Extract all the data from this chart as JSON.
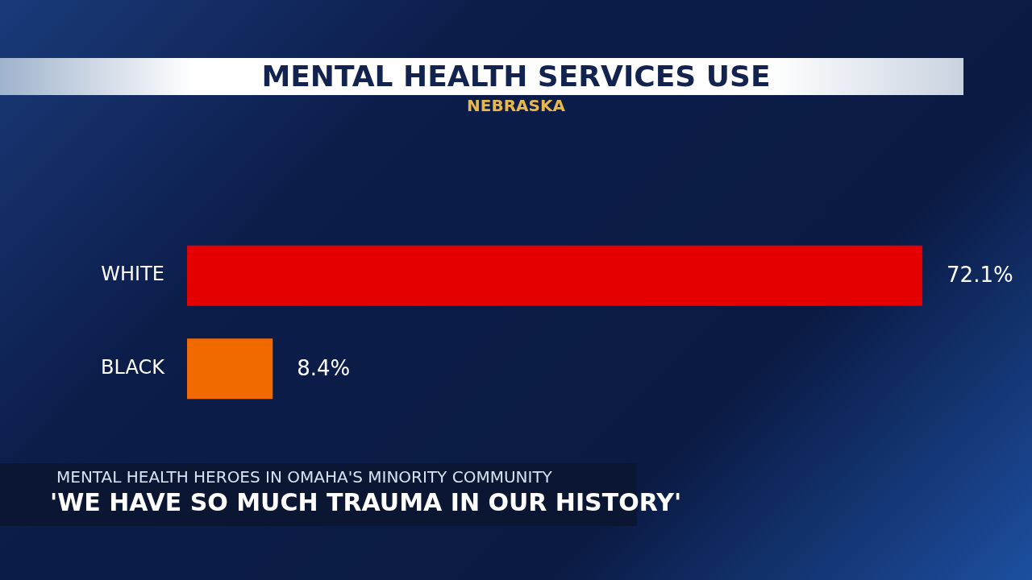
{
  "chart_data": {
    "type": "bar",
    "orientation": "horizontal",
    "title": "MENTAL HEALTH SERVICES USE",
    "subtitle": "NEBRASKA",
    "categories": [
      "WHITE",
      "BLACK"
    ],
    "values": [
      72.1,
      8.4
    ],
    "colors": [
      "#e50000",
      "#f06a00"
    ],
    "value_labels": [
      "72.1%",
      "8.4%"
    ],
    "tick_labels": "y",
    "grid": false,
    "legend": false,
    "annotations": [
      "MENTAL HEALTH HEROES IN OMAHA'S MINORITY COMMUNITY",
      "'WE HAVE SO MUCH TRAUMA IN OUR HISTORY'"
    ]
  }
}
